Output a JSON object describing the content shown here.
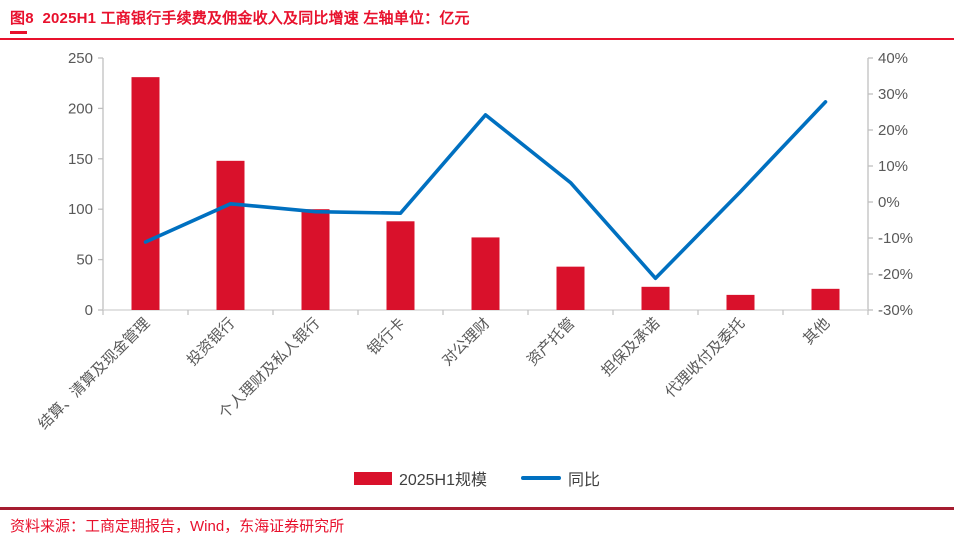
{
  "header": {
    "title": "图8  2025H1 工商银行手续费及佣金收入及同比增速 左轴单位：亿元"
  },
  "legend": {
    "bar_label": "2025H1规模",
    "line_label": "同比"
  },
  "footer": {
    "source": "资料来源：工商定期报告，Wind，东海证券研究所"
  },
  "colors": {
    "bar": "#d9112b",
    "line": "#0070c0",
    "accent_red": "#e8112d",
    "dark_red": "#a51c30",
    "axis_text": "#595959",
    "axis_line": "#bfbfbf",
    "baseline": "#d9d9d9",
    "legend_text": "#404040"
  },
  "chart_data": {
    "type": "bar",
    "subtype": "bar-line-combo",
    "title": "2025H1 工商银行手续费及佣金收入及同比增速",
    "unit_note": "左轴单位：亿元",
    "categories": [
      "结算、清算及现金管理",
      "投资银行",
      "个人理财及私人银行",
      "银行卡",
      "对公理财",
      "资产托管",
      "担保及承诺",
      "代理收付及委托",
      "其他"
    ],
    "series": [
      {
        "name": "2025H1规模",
        "type": "bar",
        "axis": "left",
        "values": [
          231,
          148,
          100,
          88,
          72,
          43,
          23,
          15,
          21
        ]
      },
      {
        "name": "同比",
        "type": "line",
        "axis": "right",
        "values": [
          -11.1,
          -0.5,
          -2.7,
          -3.1,
          24.2,
          5.4,
          -21.2,
          2.9,
          27.8
        ]
      }
    ],
    "left_axis": {
      "min": 0,
      "max": 250,
      "step": 50,
      "ticks": [
        "0",
        "50",
        "100",
        "150",
        "200",
        "250"
      ]
    },
    "right_axis": {
      "min": -30,
      "max": 40,
      "step": 10,
      "ticks": [
        "-30%",
        "-20%",
        "-10%",
        "0%",
        "10%",
        "20%",
        "30%",
        "40%"
      ]
    },
    "grid": false,
    "legend_position": "bottom"
  }
}
